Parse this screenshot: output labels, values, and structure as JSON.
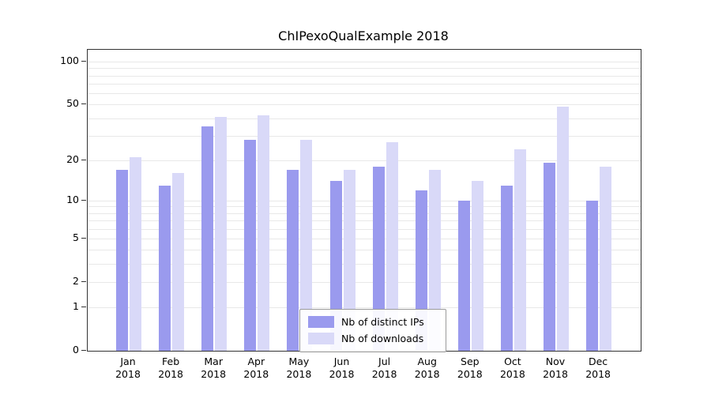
{
  "chart_data": {
    "type": "bar",
    "title": "ChIPexoQualExample 2018",
    "year": "2018",
    "categories": [
      "Jan",
      "Feb",
      "Mar",
      "Apr",
      "May",
      "Jun",
      "Jul",
      "Aug",
      "Sep",
      "Oct",
      "Nov",
      "Dec"
    ],
    "series": [
      {
        "key": "distinct-ips",
        "name": "Nb of distinct IPs",
        "color": "#9a9aee",
        "values": [
          17,
          13,
          35,
          28,
          17,
          14,
          18,
          12,
          10,
          13,
          19,
          10
        ]
      },
      {
        "key": "downloads",
        "name": "Nb of downloads",
        "color": "#d9d9f8",
        "values": [
          21,
          16,
          41,
          42,
          28,
          17,
          27,
          17,
          14,
          24,
          48,
          18
        ]
      }
    ],
    "y_ticks": [
      0,
      1,
      2,
      5,
      10,
      20,
      50,
      100
    ],
    "minor_gridlines": [
      1,
      2,
      3,
      4,
      5,
      6,
      7,
      8,
      9,
      10,
      20,
      30,
      40,
      50,
      60,
      70,
      80,
      90,
      100
    ],
    "y_scale": "log10(value+1)",
    "ylim": [
      0,
      121
    ],
    "grid": true,
    "legend_position": "bottom-center",
    "colors": {
      "grid": "#e8e8e8",
      "axis": "#333333",
      "background": "#ffffff"
    }
  }
}
